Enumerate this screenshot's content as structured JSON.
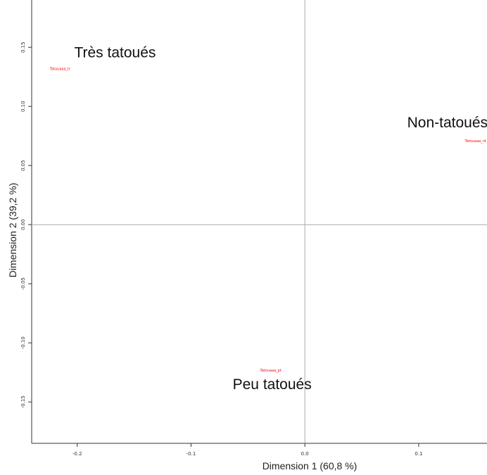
{
  "chart_data": {
    "type": "scatter",
    "xlabel": "Dimension 1 (60,8 %)",
    "ylabel": "Dimension 2 (39,2 %)",
    "xlim": [
      -0.24,
      0.16
    ],
    "ylim": [
      -0.185,
      0.19
    ],
    "x_ticks": [
      "-0.2",
      "-0.1",
      "0.0",
      "0.1"
    ],
    "y_ticks": [
      "0.15",
      "0.10",
      "0.05",
      "0.00",
      "-0.05",
      "-0.10",
      "-0.15"
    ],
    "x_tick_values": [
      -0.2,
      -0.1,
      0.0,
      0.1
    ],
    "y_tick_values": [
      0.15,
      0.1,
      0.05,
      0.0,
      -0.05,
      -0.1,
      -0.15
    ],
    "reference_lines": {
      "x": 0,
      "y": 0
    },
    "points": [
      {
        "label": "Tatouaaa_tr",
        "group": "Très tatoués",
        "x": -0.215,
        "y": 0.132
      },
      {
        "label": "Tatouaaa_nt",
        "group": "Non-tatoués",
        "x": 0.15,
        "y": 0.071
      },
      {
        "label": "Tatouaaa_pt",
        "group": "Peu tatoués",
        "x": -0.03,
        "y": -0.123
      }
    ],
    "point_color": "#ff0000",
    "grid": false
  }
}
